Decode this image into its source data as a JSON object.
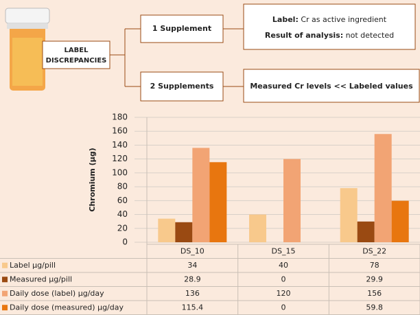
{
  "diagram": {
    "root": "LABEL DISCREPANCIES",
    "branches": [
      {
        "label": "1 Supplement",
        "detail_lines": [
          {
            "key": "Label:",
            "text": "Cr as active ingredient"
          },
          {
            "key": "Result of analysis:",
            "text": "not detected"
          }
        ]
      },
      {
        "label": "2 Supplements",
        "detail": "Measured Cr levels << Labeled values"
      }
    ]
  },
  "chart_data": {
    "type": "bar",
    "y_label": "Chromium (µg)",
    "categories": [
      "DS_10",
      "DS_15",
      "DS_22"
    ],
    "series": [
      {
        "name": "Label µg/pill",
        "color": "#f8c98c",
        "values": [
          34,
          40,
          78
        ]
      },
      {
        "name": "Measured µg/pill",
        "color": "#9a4a12",
        "values": [
          28.9,
          0,
          29.9
        ]
      },
      {
        "name": "Daily dose (label) µg/day",
        "color": "#f2a474",
        "values": [
          136,
          120,
          156
        ]
      },
      {
        "name": "Daily dose (measured) µg/day",
        "color": "#e8760f",
        "values": [
          115.4,
          0,
          59.8
        ]
      }
    ],
    "ylim": [
      0,
      180
    ],
    "yticks": [
      0,
      20,
      40,
      60,
      80,
      100,
      120,
      140,
      160,
      180
    ],
    "grid": true
  }
}
